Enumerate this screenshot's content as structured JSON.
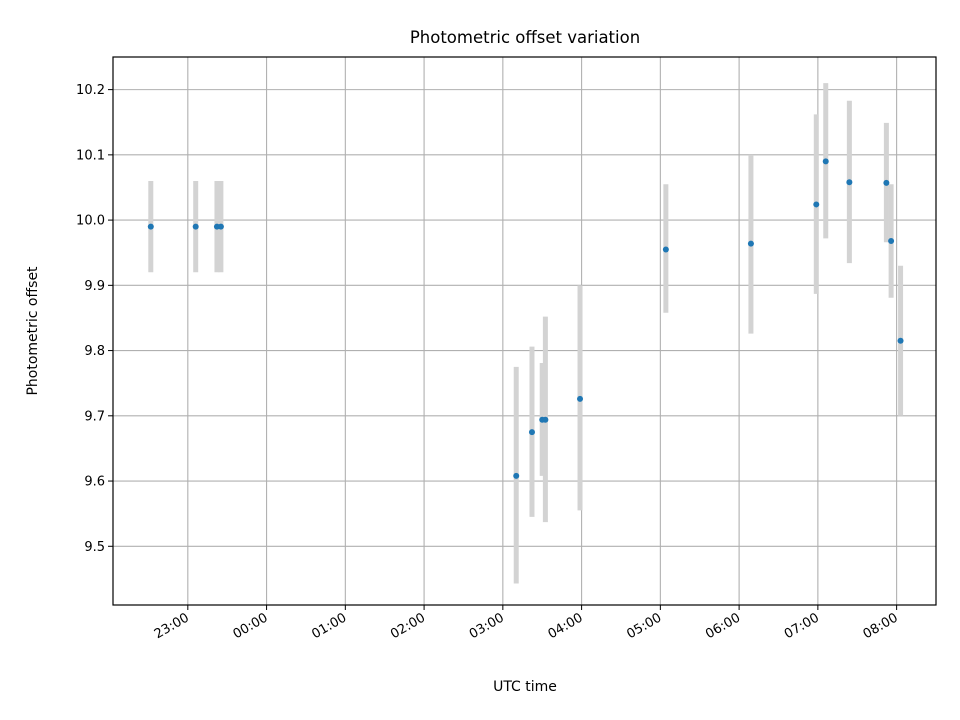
{
  "chart_data": {
    "type": "scatter",
    "title": "Photometric offset variation",
    "xlabel": "UTC time",
    "ylabel": "Photometric offset",
    "x_ticks": [
      "23:00",
      "00:00",
      "01:00",
      "02:00",
      "03:00",
      "04:00",
      "05:00",
      "06:00",
      "07:00",
      "08:00"
    ],
    "x_tick_hours": [
      23,
      24,
      25,
      26,
      27,
      28,
      29,
      30,
      31,
      32
    ],
    "y_ticks": [
      9.5,
      9.6,
      9.7,
      9.8,
      9.9,
      10.0,
      10.1,
      10.2
    ],
    "xlim_hours": [
      22.05,
      32.5
    ],
    "ylim": [
      9.41,
      10.25
    ],
    "grid": true,
    "colors": {
      "point": "#1f77b4",
      "errorbar": "#d3d3d3",
      "grid": "#b0b0b0"
    },
    "series": [
      {
        "x_hours": [
          22.53,
          23.1,
          23.37,
          23.42,
          27.17,
          27.37,
          27.5,
          27.54,
          27.98,
          29.07,
          30.15,
          30.98,
          31.1,
          31.4,
          31.87,
          31.93,
          32.05
        ],
        "y": [
          9.99,
          9.99,
          9.99,
          9.99,
          9.608,
          9.675,
          9.694,
          9.694,
          9.726,
          9.955,
          9.964,
          10.024,
          10.09,
          10.058,
          10.057,
          9.968,
          9.815
        ],
        "err_low": [
          9.92,
          9.92,
          9.92,
          9.92,
          9.443,
          9.545,
          9.608,
          9.537,
          9.555,
          9.858,
          9.826,
          9.887,
          9.972,
          9.934,
          9.966,
          9.881,
          9.7
        ],
        "err_high": [
          10.06,
          10.06,
          10.06,
          10.06,
          9.775,
          9.806,
          9.781,
          9.852,
          9.9,
          10.055,
          10.1,
          10.162,
          10.21,
          10.183,
          10.149,
          10.055,
          9.93
        ]
      }
    ]
  }
}
